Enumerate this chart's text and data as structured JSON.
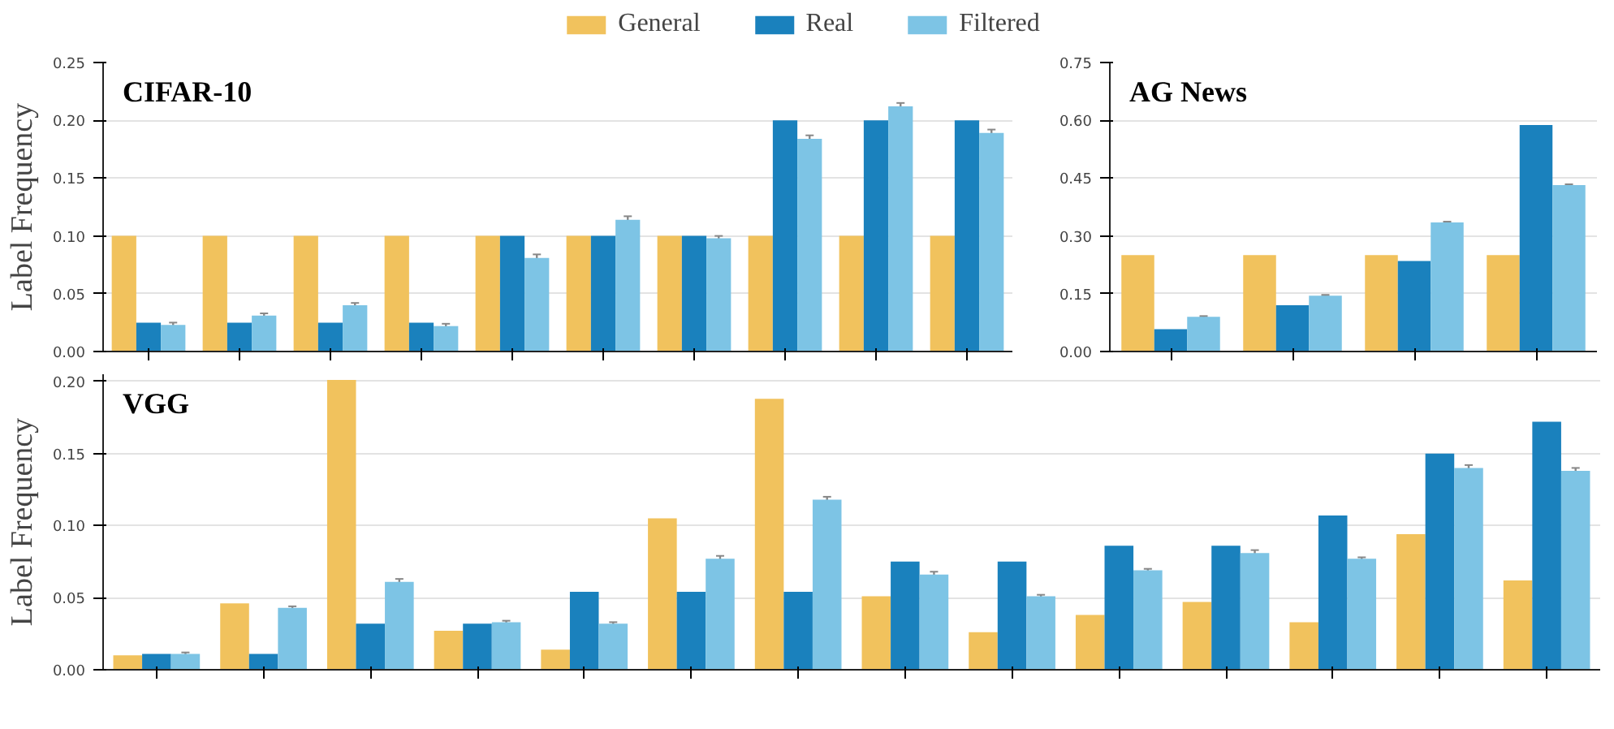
{
  "chart_data": [
    {
      "type": "bar",
      "title": "CIFAR-10",
      "ylabel": "Label Frequency",
      "categories": [
        null,
        null,
        null,
        null,
        null,
        null,
        null,
        null,
        null,
        null
      ],
      "series": [
        {
          "name": "General",
          "color": "#f1c25d",
          "values": [
            0.1,
            0.1,
            0.1,
            0.1,
            0.1,
            0.1,
            0.1,
            0.1,
            0.1,
            0.1
          ]
        },
        {
          "name": "Real",
          "color": "#1a81bd",
          "values": [
            0.025,
            0.025,
            0.025,
            0.025,
            0.1,
            0.1,
            0.1,
            0.2,
            0.2,
            0.2
          ]
        },
        {
          "name": "Filtered",
          "color": "#7dc4e5",
          "values": [
            0.023,
            0.031,
            0.04,
            0.022,
            0.081,
            0.114,
            0.098,
            0.184,
            0.212,
            0.189
          ],
          "errors": [
            0.002,
            0.002,
            0.002,
            0.002,
            0.003,
            0.003,
            0.002,
            0.003,
            0.003,
            0.003
          ]
        }
      ],
      "ylim": [
        0,
        0.25
      ],
      "yticks": [
        {
          "value": 0,
          "label": "0.00"
        },
        {
          "value": 0.05,
          "label": "0.05"
        },
        {
          "value": 0.1,
          "label": "0.10"
        },
        {
          "value": 0.15,
          "label": "0.15"
        },
        {
          "value": 0.2,
          "label": "0.20"
        },
        {
          "value": 0.25,
          "label": "0.25"
        }
      ],
      "grid": "y",
      "legend": "top",
      "tick_labels": "y"
    },
    {
      "type": "bar",
      "title": "AG News",
      "categories": [
        null,
        null,
        null,
        null
      ],
      "series": [
        {
          "color": "#f1c25d",
          "values": [
            0.25,
            0.25,
            0.25,
            0.25
          ]
        },
        {
          "color": "#1a81bd",
          "values": [
            0.058,
            0.12,
            0.235,
            0.588
          ]
        },
        {
          "color": "#7dc4e5",
          "values": [
            0.09,
            0.145,
            0.335,
            0.432
          ],
          "errors": [
            0.002,
            0.002,
            0.002,
            0.002
          ]
        }
      ],
      "ylim": [
        0,
        0.75
      ],
      "yticks": [
        {
          "value": 0,
          "label": "0.00"
        },
        {
          "value": 0.15,
          "label": "0.15"
        },
        {
          "value": 0.3,
          "label": "0.30"
        },
        {
          "value": 0.45,
          "label": "0.45"
        },
        {
          "value": 0.6,
          "label": "0.60"
        },
        {
          "value": 0.75,
          "label": "0.75"
        }
      ],
      "grid": "y",
      "tick_labels": "y"
    },
    {
      "type": "bar",
      "title": "VGG",
      "ylabel": "Label Frequency",
      "categories": [
        null,
        null,
        null,
        null,
        null,
        null,
        null,
        null,
        null,
        null,
        null,
        null,
        null,
        null
      ],
      "series": [
        {
          "color": "#f1c25d",
          "values": [
            0.01,
            0.046,
            0.201,
            0.027,
            0.014,
            0.105,
            0.188,
            0.051,
            0.026,
            0.038,
            0.047,
            0.033,
            0.094,
            0.062
          ]
        },
        {
          "color": "#1a81bd",
          "values": [
            0.011,
            0.011,
            0.032,
            0.032,
            0.054,
            0.054,
            0.054,
            0.075,
            0.075,
            0.086,
            0.086,
            0.107,
            0.15,
            0.172
          ]
        },
        {
          "color": "#7dc4e5",
          "values": [
            0.011,
            0.043,
            0.061,
            0.033,
            0.032,
            0.077,
            0.118,
            0.066,
            0.051,
            0.069,
            0.081,
            0.077,
            0.14,
            0.138
          ],
          "errors": [
            0.001,
            0.001,
            0.002,
            0.001,
            0.001,
            0.002,
            0.002,
            0.002,
            0.001,
            0.001,
            0.002,
            0.001,
            0.002,
            0.002
          ]
        }
      ],
      "ylim": [
        0,
        0.205
      ],
      "yticks": [
        {
          "value": 0,
          "label": "0.00"
        },
        {
          "value": 0.05,
          "label": "0.05"
        },
        {
          "value": 0.1,
          "label": "0.10"
        },
        {
          "value": 0.15,
          "label": "0.15"
        },
        {
          "value": 0.2,
          "label": "0.20"
        }
      ],
      "grid": "y",
      "tick_labels": "y"
    }
  ]
}
